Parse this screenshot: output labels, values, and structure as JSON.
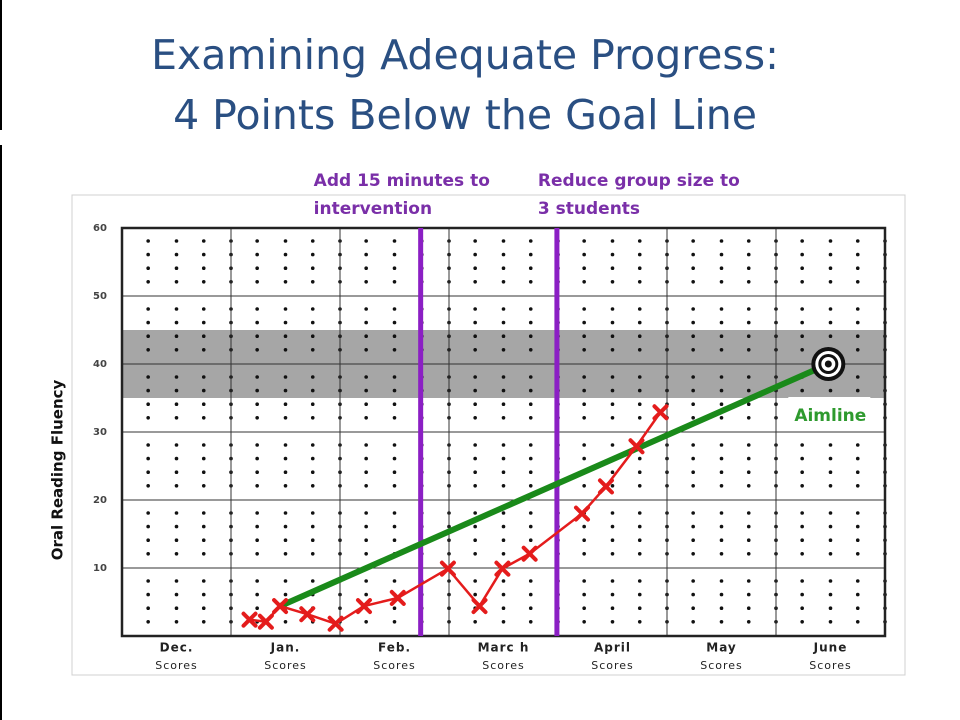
{
  "chart_data": {
    "type": "line",
    "title": "Examining Adequate Progress:",
    "subtitle": "4 Points Below the Goal Line",
    "y_label": "Oral Reading Fluency",
    "categories": [
      "Dec.",
      "Jan.",
      "Feb.",
      "Marc h",
      "April",
      "May",
      "June"
    ],
    "category_sublabels": [
      "Scores",
      "Scores",
      "Scores",
      "Scores",
      "Scores",
      "Scores",
      "Scores"
    ],
    "xlim": [
      0,
      7
    ],
    "ylim": [
      0,
      60
    ],
    "yticks": [
      10,
      20,
      30,
      40,
      50,
      60
    ],
    "grid": true,
    "goal_band": {
      "range": [
        35,
        45
      ],
      "color": "#a6a6a6"
    },
    "interventions": [
      {
        "x": 2.74,
        "label_lines": [
          "Add 15 minutes to",
          "intervention"
        ],
        "color": "#8b1fc4"
      },
      {
        "x": 3.99,
        "label_lines": [
          "Reduce group size to",
          "3 students"
        ],
        "color": "#8b1fc4"
      }
    ],
    "series": [
      {
        "color": "#e41c1c",
        "marker": "x",
        "x": [
          1.17,
          1.32,
          1.45,
          1.7,
          1.96,
          2.22,
          2.53,
          2.99,
          3.28,
          3.49,
          3.74,
          4.22,
          4.44,
          4.72,
          4.94
        ],
        "values": [
          2.4,
          2.1,
          4.4,
          3.2,
          1.8,
          4.4,
          5.6,
          9.9,
          4.4,
          9.9,
          12.1,
          18.0,
          22.0,
          27.9,
          32.9
        ]
      },
      {
        "name": "Aimline",
        "color": "#1a8a1a",
        "x": [
          1.45,
          6.48
        ],
        "values": [
          4.4,
          40
        ]
      }
    ]
  }
}
